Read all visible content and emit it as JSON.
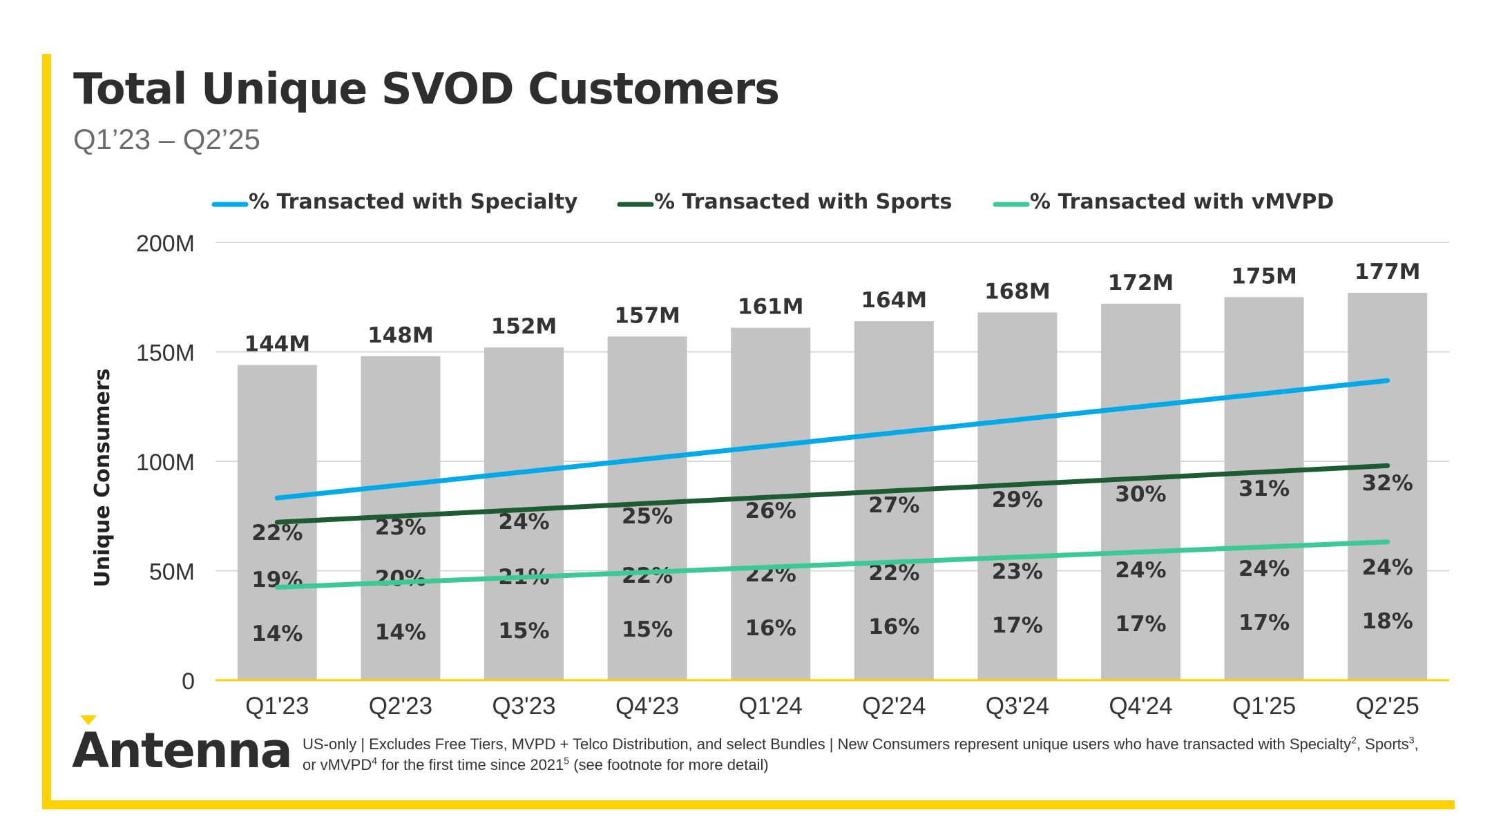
{
  "header": {
    "title": "Total Unique SVOD Customers",
    "subtitle": "Q1’23 – Q2’25"
  },
  "brand": {
    "logo_text": "Antenna",
    "accent_color": "#FFD100"
  },
  "footnote": {
    "line": "US-only | Excludes Free Tiers, MVPD + Telco Distribution, and select Bundles | New Consumers represent unique users who have transacted with",
    "specialty": "Specialty",
    "sup_specialty": "2",
    "sports": ", Sports",
    "sup_sports": "3",
    "vmvpd": ", or vMVPD",
    "sup_vmvpd": "4",
    "since": " for the first time since 2021",
    "sup_since": "5",
    "tail": " (see footnote for more detail)"
  },
  "chart_data": {
    "type": "bar",
    "title": "Total Unique SVOD Customers",
    "subtitle": "Q1’23 – Q2’25",
    "ylabel": "Unique Consumers",
    "ylim": [
      0,
      200
    ],
    "y_unit": "M",
    "y_ticks": [
      0,
      50,
      100,
      150,
      200
    ],
    "y_tick_labels": [
      "0",
      "50M",
      "100M",
      "150M",
      "200M"
    ],
    "grid": true,
    "legend_position": "top",
    "categories": [
      "Q1'23",
      "Q2'23",
      "Q3'23",
      "Q4'23",
      "Q1'24",
      "Q2'24",
      "Q3'24",
      "Q4'24",
      "Q1'25",
      "Q2'25"
    ],
    "bar_series": {
      "values": [
        144,
        148,
        152,
        157,
        161,
        164,
        168,
        172,
        175,
        177
      ],
      "labels": [
        "144M",
        "148M",
        "152M",
        "157M",
        "161M",
        "164M",
        "168M",
        "172M",
        "175M",
        "177M"
      ],
      "color": "#C4C3C4"
    },
    "line_series": [
      {
        "name": "% Transacted with Specialty",
        "values": [
          22,
          23,
          24,
          25,
          26,
          27,
          29,
          30,
          31,
          32
        ],
        "labels": [
          "22%",
          "23%",
          "24%",
          "25%",
          "26%",
          "27%",
          "29%",
          "30%",
          "31%",
          "32%"
        ],
        "color": "#00A9E8"
      },
      {
        "name": "% Transacted with Sports",
        "values": [
          19,
          20,
          21,
          22,
          22,
          22,
          23,
          24,
          24,
          24
        ],
        "labels": [
          "19%",
          "20%",
          "21%",
          "22%",
          "22%",
          "22%",
          "23%",
          "24%",
          "24%",
          "24%"
        ],
        "color": "#1D5B33"
      },
      {
        "name": "% Transacted with vMVPD",
        "values": [
          14,
          14,
          15,
          15,
          16,
          16,
          17,
          17,
          17,
          18
        ],
        "labels": [
          "14%",
          "14%",
          "15%",
          "15%",
          "16%",
          "16%",
          "17%",
          "17%",
          "17%",
          "18%"
        ],
        "color": "#3CC997"
      }
    ],
    "baseline_color": "#FFD100",
    "grid_color": "#D9D9D9"
  }
}
